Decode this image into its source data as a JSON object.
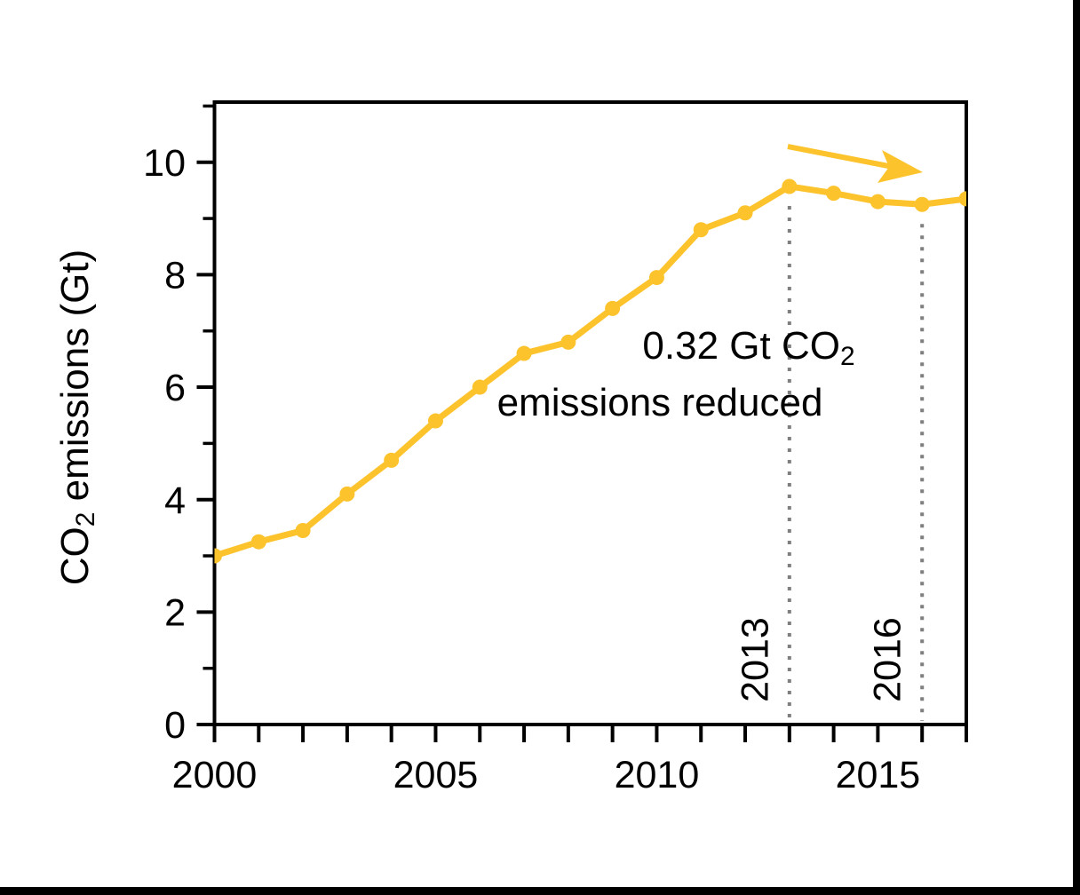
{
  "chart_data": {
    "type": "line",
    "title": "",
    "xlabel": "",
    "ylabel": "CO2 emissions (Gt)",
    "ylabel_parts": {
      "prefix": "CO",
      "subscript": "2",
      "suffix": " emissions (Gt)"
    },
    "x": [
      2000,
      2001,
      2002,
      2003,
      2004,
      2005,
      2006,
      2007,
      2008,
      2009,
      2010,
      2011,
      2012,
      2013,
      2014,
      2015,
      2016,
      2017
    ],
    "series": [
      {
        "name": "CO2 emissions",
        "color": "#FCC32D",
        "marker": "circle",
        "values": [
          3.0,
          3.25,
          3.45,
          4.1,
          4.7,
          5.4,
          6.0,
          6.6,
          6.8,
          7.4,
          7.95,
          8.8,
          9.1,
          9.57,
          9.45,
          9.3,
          9.25,
          9.35
        ]
      }
    ],
    "xlim": [
      2000,
      2017
    ],
    "ylim": [
      0,
      11.07
    ],
    "xticks_labeled": [
      "2000",
      "2005",
      "2010",
      "2015"
    ],
    "xticks_minor_years": [
      2000,
      2001,
      2002,
      2003,
      2004,
      2005,
      2006,
      2007,
      2008,
      2009,
      2010,
      2011,
      2012,
      2013,
      2014,
      2015,
      2016,
      2017
    ],
    "yticks_major": [
      0,
      2,
      4,
      6,
      8,
      10
    ],
    "yticks_minor": [
      1,
      3,
      5,
      7,
      9,
      11
    ],
    "grid": false,
    "legend": false,
    "vlines": [
      {
        "x": 2013,
        "label": "2013",
        "style": "dotted",
        "color": "#7f7f7f"
      },
      {
        "x": 2016,
        "label": "2016",
        "style": "dotted",
        "color": "#7f7f7f"
      }
    ],
    "annotation": {
      "line1_prefix": "0.32 Gt CO",
      "line1_subscript": "2",
      "line2": "emissions reduced"
    },
    "arrow": {
      "description": "downward-sloping arrow above the 2013-2017 segment",
      "color": "#FCC32D"
    }
  },
  "colors": {
    "line": "#FCC32D",
    "axis": "#000000",
    "text": "#000000",
    "vline": "#7f7f7f",
    "background": "#ffffff",
    "screen_edge": "#000000"
  }
}
